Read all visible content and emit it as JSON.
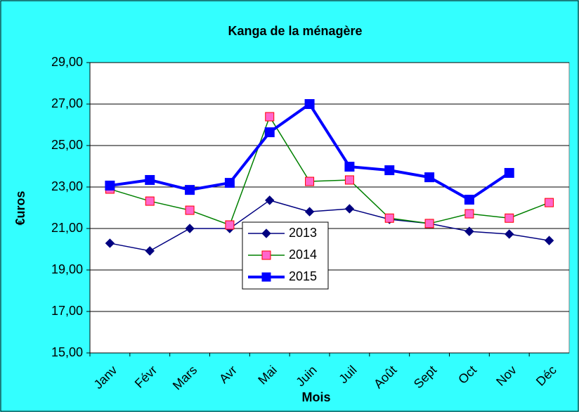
{
  "chart_data": {
    "type": "line",
    "title": "Kanga de la ménagère",
    "x_label": "Mois",
    "y_label": "€uros",
    "categories": [
      "Janv",
      "Févr",
      "Mars",
      "Avr",
      "Mai",
      "Juin",
      "Juil",
      "Août",
      "Sept",
      "Oct",
      "Nov",
      "Déc"
    ],
    "series": [
      {
        "name": "2013",
        "color": "#000080",
        "marker": "diamond",
        "marker_color": "#000080",
        "values": [
          20.29,
          19.92,
          21.0,
          21.0,
          22.36,
          21.81,
          21.95,
          21.44,
          21.24,
          20.86,
          20.73,
          20.42
        ]
      },
      {
        "name": "2014",
        "color": "#008000",
        "marker": "square",
        "marker_color": "#ff66cc",
        "values": [
          22.9,
          22.32,
          21.88,
          21.17,
          26.39,
          23.27,
          23.34,
          21.5,
          21.24,
          21.71,
          21.5,
          22.25
        ]
      },
      {
        "name": "2015",
        "color": "#0000ff",
        "marker": "square",
        "marker_color": "#0000ff",
        "values": [
          23.07,
          23.34,
          22.86,
          23.2,
          25.64,
          27.0,
          23.98,
          23.81,
          23.47,
          22.39,
          23.68,
          null
        ]
      }
    ],
    "ylim": [
      15,
      29
    ],
    "yticks": [
      {
        "value": 15,
        "label": "15,00"
      },
      {
        "value": 17,
        "label": "17,00"
      },
      {
        "value": 19,
        "label": "19,00"
      },
      {
        "value": 21,
        "label": "21,00"
      },
      {
        "value": 23,
        "label": "23,00"
      },
      {
        "value": 25,
        "label": "25,00"
      },
      {
        "value": 27,
        "label": "27,00"
      },
      {
        "value": 29,
        "label": "29,00"
      }
    ],
    "grid": true
  }
}
